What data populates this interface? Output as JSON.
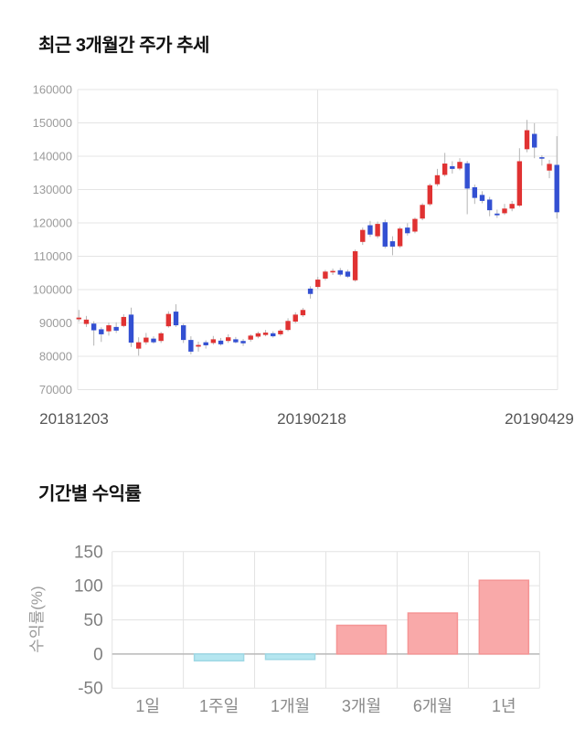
{
  "chart_data": [
    {
      "type": "candlestick",
      "title": "최근 3개월간 주가 추세",
      "ylim": [
        70000,
        160000
      ],
      "y_ticks": [
        160000,
        150000,
        140000,
        130000,
        120000,
        110000,
        100000,
        90000,
        80000,
        70000
      ],
      "x_labels": [
        "20181203",
        "20190218",
        "20190429"
      ],
      "grid": true,
      "legend_position": "none",
      "up_color": "#e03232",
      "down_color": "#3350d2",
      "wick_color": "#b5b5b5",
      "grid_color": "#e4e4e4",
      "tick_label_color": "#9b9b9b",
      "date_label_color": "#555555",
      "candles_ohlc": [
        [
          91100,
          93900,
          90400,
          91600
        ],
        [
          89700,
          92100,
          88800,
          91000
        ],
        [
          89800,
          90500,
          83200,
          87800
        ],
        [
          88100,
          88700,
          84300,
          86600
        ],
        [
          87500,
          90100,
          86200,
          89300
        ],
        [
          88800,
          90200,
          87000,
          87700
        ],
        [
          89100,
          92600,
          88700,
          91800
        ],
        [
          92500,
          94600,
          82800,
          84100
        ],
        [
          82300,
          85700,
          80200,
          84200
        ],
        [
          84200,
          87000,
          83500,
          85600
        ],
        [
          85300,
          86000,
          83800,
          84200
        ],
        [
          84600,
          87300,
          84000,
          86900
        ],
        [
          89000,
          93500,
          88600,
          92700
        ],
        [
          93400,
          95600,
          88800,
          89300
        ],
        [
          89300,
          89800,
          84000,
          84900
        ],
        [
          84900,
          86000,
          80600,
          81400
        ],
        [
          82900,
          84400,
          81400,
          83400
        ],
        [
          84200,
          84800,
          82300,
          83300
        ],
        [
          84000,
          86100,
          83500,
          85100
        ],
        [
          84700,
          85500,
          83200,
          83600
        ],
        [
          84600,
          86600,
          84000,
          85700
        ],
        [
          85100,
          85800,
          83900,
          84200
        ],
        [
          84600,
          85200,
          83100,
          83900
        ],
        [
          85000,
          86600,
          84400,
          86200
        ],
        [
          85900,
          87400,
          85400,
          86900
        ],
        [
          86400,
          87900,
          86000,
          87100
        ],
        [
          86900,
          87500,
          85600,
          86000
        ],
        [
          86600,
          88200,
          86100,
          87700
        ],
        [
          87900,
          91400,
          87500,
          90600
        ],
        [
          90400,
          93200,
          89900,
          92500
        ],
        [
          92300,
          94500,
          91800,
          93900
        ],
        [
          100300,
          101000,
          97300,
          98700
        ],
        [
          100800,
          103800,
          100200,
          103000
        ],
        [
          103300,
          105900,
          102800,
          105400
        ],
        [
          105300,
          106300,
          104400,
          105600
        ],
        [
          105800,
          106500,
          104000,
          104500
        ],
        [
          105400,
          106000,
          103500,
          103900
        ],
        [
          102800,
          112000,
          102400,
          111500
        ],
        [
          114300,
          118600,
          113400,
          117900
        ],
        [
          119300,
          120600,
          115800,
          116500
        ],
        [
          116000,
          120400,
          115400,
          119700
        ],
        [
          120200,
          121000,
          112400,
          112900
        ],
        [
          114500,
          116000,
          110300,
          112900
        ],
        [
          113000,
          118800,
          112500,
          118300
        ],
        [
          118600,
          119900,
          116200,
          116900
        ],
        [
          117400,
          121600,
          116900,
          121200
        ],
        [
          121300,
          125900,
          120800,
          125400
        ],
        [
          125600,
          131800,
          125100,
          131300
        ],
        [
          131600,
          136200,
          131000,
          134300
        ],
        [
          134400,
          141000,
          133900,
          137800
        ],
        [
          137000,
          138500,
          134800,
          136200
        ],
        [
          136300,
          139400,
          135800,
          138300
        ],
        [
          137900,
          138600,
          122600,
          130300
        ],
        [
          130700,
          131500,
          125700,
          127500
        ],
        [
          128400,
          129500,
          125900,
          126600
        ],
        [
          127000,
          127800,
          122000,
          123800
        ],
        [
          122800,
          124000,
          121500,
          122300
        ],
        [
          122900,
          125700,
          122400,
          124300
        ],
        [
          124300,
          126600,
          123500,
          125700
        ],
        [
          125200,
          142400,
          124800,
          138500
        ],
        [
          142100,
          150900,
          141200,
          147800
        ],
        [
          146700,
          149900,
          139400,
          142600
        ],
        [
          139700,
          140300,
          137200,
          139300
        ],
        [
          135700,
          138900,
          133400,
          137700
        ],
        [
          137400,
          146000,
          121300,
          123200
        ]
      ]
    },
    {
      "type": "bar",
      "title": "기간별 수익률",
      "ylabel": "수익률(%)",
      "categories": [
        "1일",
        "1주일",
        "1개월",
        "3개월",
        "6개월",
        "1년"
      ],
      "values": [
        0,
        -10,
        -8,
        42,
        60,
        108
      ],
      "y_ticks": [
        150,
        100,
        50,
        0,
        -50
      ],
      "ylim": [
        -50,
        150
      ],
      "grid": true,
      "legend_position": "none",
      "positive_color": "#f9a9a9",
      "positive_border": "#f59595",
      "negative_color": "#b5e6f0",
      "negative_border": "#9ed8e4",
      "grid_color": "#e3e3e3",
      "zero_line_color": "#b8b8b8",
      "tick_label_color": "#808080",
      "category_label_color": "#8a8a8a",
      "ylabel_color": "#999999"
    }
  ]
}
